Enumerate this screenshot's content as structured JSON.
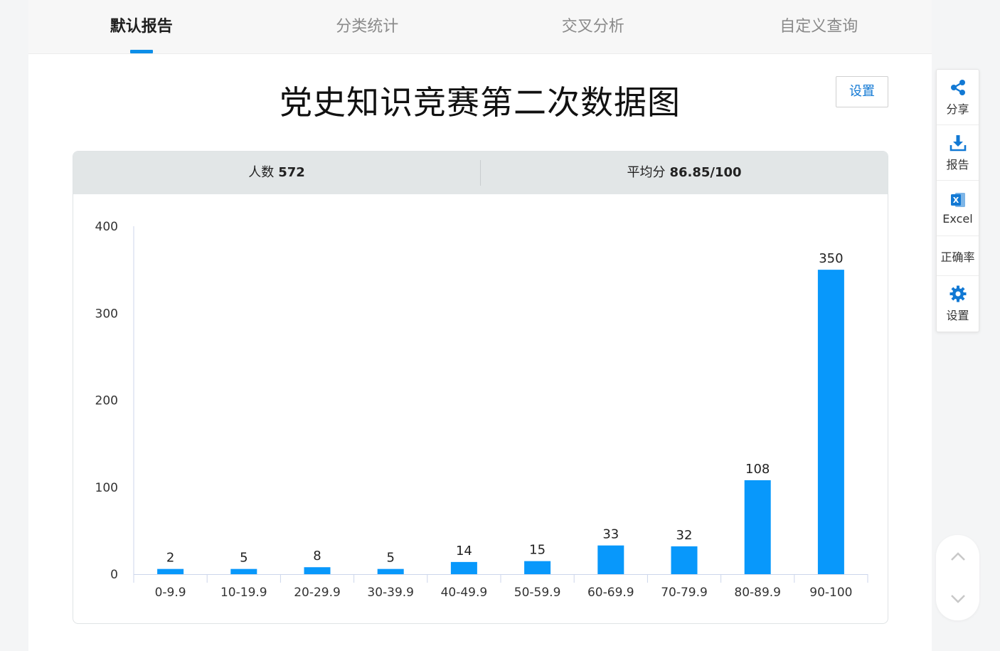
{
  "tabs": [
    {
      "label": "默认报告",
      "active": true
    },
    {
      "label": "分类统计",
      "active": false
    },
    {
      "label": "交叉分析",
      "active": false
    },
    {
      "label": "自定义查询",
      "active": false
    }
  ],
  "page_title": "党史知识竞赛第二次数据图",
  "settings_label": "设置",
  "stats": {
    "count_label": "人数",
    "count_value": "572",
    "avg_label": "平均分",
    "avg_value": "86.85/100"
  },
  "toolbar": {
    "share": "分享",
    "report": "报告",
    "excel": "Excel",
    "accuracy": "正确率",
    "settings": "设置"
  },
  "colors": {
    "accent": "#0c8ee8",
    "bar": "#0898fb"
  },
  "chart_data": {
    "type": "bar",
    "categories": [
      "0-9.9",
      "10-19.9",
      "20-29.9",
      "30-39.9",
      "40-49.9",
      "50-59.9",
      "60-69.9",
      "70-79.9",
      "80-89.9",
      "90-100"
    ],
    "values": [
      2,
      5,
      8,
      5,
      14,
      15,
      33,
      32,
      108,
      350
    ],
    "yticks": [
      0,
      100,
      200,
      300,
      400
    ],
    "ylim": [
      0,
      400
    ],
    "data_labels": true,
    "grid": false
  }
}
